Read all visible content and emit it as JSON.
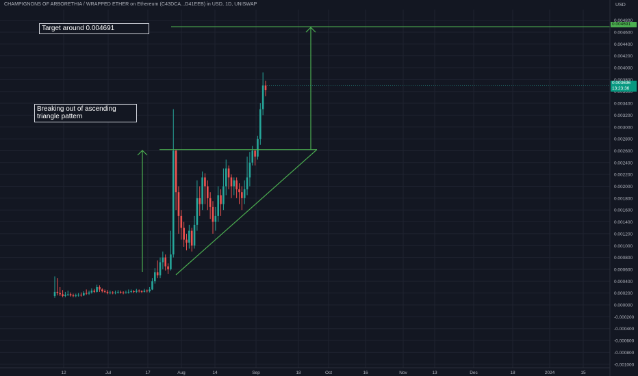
{
  "header": {
    "title": "CHAMPIGNONS OF ARBORETHIA / WRAPPED ETHER on Ethereum (C43DCA...D41EEB) in USD, 1D, UNISWAP",
    "currency": "USD"
  },
  "annotations": {
    "target": "Target around 0.004691",
    "pattern": "Breaking out of ascending\ntriangle pattern"
  },
  "price_tags": {
    "target": "0.004691",
    "last_price": "0.003696",
    "countdown": "13:23:36"
  },
  "colors": {
    "background": "#131722",
    "grid": "#1f2330",
    "up": "#26a69a",
    "down": "#ef5350",
    "drawing": "#4caf50",
    "axis_text": "#b2b5be",
    "annotation_border": "#d1d4dc"
  },
  "chart_data": {
    "type": "candlestick",
    "title": "CHAMPIGNONS OF ARBORETHIA / WRAPPED ETHER on Ethereum (C43DCA...D41EEB) in USD, 1D, UNISWAP",
    "ylabel": "USD",
    "ylim": [
      -0.0011,
      0.0049
    ],
    "y_ticks": [
      "0.004800",
      "0.004600",
      "0.004400",
      "0.004200",
      "0.004000",
      "0.003800",
      "0.003600",
      "0.003400",
      "0.003200",
      "0.003000",
      "0.002800",
      "0.002600",
      "0.002400",
      "0.002200",
      "0.002000",
      "0.001800",
      "0.001600",
      "0.001400",
      "0.001200",
      "0.001000",
      "0.000800",
      "0.000600",
      "0.000400",
      "0.000200",
      "0.000000",
      "-0.000200",
      "-0.000400",
      "-0.000600",
      "-0.000800",
      "-0.001000"
    ],
    "x_ticks": [
      "12",
      "Jul",
      "17",
      "Aug",
      "14",
      "Sep",
      "18",
      "Oct",
      "16",
      "Nov",
      "13",
      "Dec",
      "18",
      "2024",
      "15"
    ],
    "candles": [
      [
        "Jun 12",
        0.00015,
        0.00022,
        0.00048,
        0.00012
      ],
      [
        "Jun 13",
        0.00022,
        0.0002,
        0.00045,
        0.00016
      ],
      [
        "Jun 14",
        0.0002,
        0.00018,
        0.0003,
        0.00015
      ],
      [
        "Jun 15",
        0.00018,
        0.00015,
        0.00025,
        0.00013
      ],
      [
        "Jun 16",
        0.00015,
        0.00017,
        0.00022,
        0.00013
      ],
      [
        "Jun 17",
        0.00017,
        0.00018,
        0.00024,
        0.00015
      ],
      [
        "Jun 18",
        0.00018,
        0.00016,
        0.00021,
        0.00014
      ],
      [
        "Jun 19",
        0.00016,
        0.00015,
        0.00019,
        0.00013
      ],
      [
        "Jun 20",
        0.00015,
        0.00016,
        0.00019,
        0.00013
      ],
      [
        "Jun 21",
        0.00016,
        0.00017,
        0.0002,
        0.00014
      ],
      [
        "Jun 22",
        0.00017,
        0.00016,
        0.00021,
        0.00014
      ],
      [
        "Jun 23",
        0.00016,
        0.0002,
        0.00023,
        0.00015
      ],
      [
        "Jun 24",
        0.0002,
        0.00019,
        0.00026,
        0.00017
      ],
      [
        "Jun 25",
        0.00019,
        0.00021,
        0.00024,
        0.00017
      ],
      [
        "Jun 26",
        0.00021,
        0.00024,
        0.00028,
        0.00019
      ],
      [
        "Jun 27",
        0.00024,
        0.00022,
        0.00027,
        0.0002
      ],
      [
        "Jun 28",
        0.00022,
        0.0003,
        0.00034,
        0.00021
      ],
      [
        "Jun 29",
        0.0003,
        0.00026,
        0.00033,
        0.00022
      ],
      [
        "Jun 30",
        0.00026,
        0.00023,
        0.00028,
        0.00021
      ],
      [
        "Jul 1",
        0.00023,
        0.00022,
        0.00026,
        0.0002
      ],
      [
        "Jul 2",
        0.00022,
        0.0002,
        0.00025,
        0.00018
      ],
      [
        "Jul 3",
        0.0002,
        0.00021,
        0.00024,
        0.00018
      ],
      [
        "Jul 4",
        0.00021,
        0.0002,
        0.00023,
        0.00018
      ],
      [
        "Jul 5",
        0.0002,
        0.00021,
        0.00024,
        0.00018
      ],
      [
        "Jul 6",
        0.00021,
        0.00022,
        0.00025,
        0.00019
      ],
      [
        "Jul 7",
        0.00022,
        0.00021,
        0.00024,
        0.00019
      ],
      [
        "Jul 8",
        0.00021,
        0.0002,
        0.00023,
        0.00018
      ],
      [
        "Jul 9",
        0.0002,
        0.00021,
        0.00024,
        0.00019
      ],
      [
        "Jul 10",
        0.00021,
        0.00022,
        0.00026,
        0.00019
      ],
      [
        "Jul 11",
        0.00022,
        0.00023,
        0.00026,
        0.0002
      ],
      [
        "Jul 12",
        0.00023,
        0.00022,
        0.00025,
        0.0002
      ],
      [
        "Jul 13",
        0.00022,
        0.00024,
        0.00027,
        0.0002
      ],
      [
        "Jul 14",
        0.00024,
        0.00023,
        0.00026,
        0.00021
      ],
      [
        "Jul 15",
        0.00023,
        0.00022,
        0.00025,
        0.0002
      ],
      [
        "Jul 16",
        0.00022,
        0.00024,
        0.00027,
        0.00021
      ],
      [
        "Jul 17",
        0.00024,
        0.00023,
        0.00026,
        0.00021
      ],
      [
        "Jul 18",
        0.00023,
        0.00026,
        0.0003,
        0.00021
      ],
      [
        "Jul 19",
        0.00026,
        0.0004,
        0.00045,
        0.00025
      ],
      [
        "Jul 20",
        0.0004,
        0.00055,
        0.00062,
        0.00036
      ],
      [
        "Jul 21",
        0.00055,
        0.0005,
        0.00075,
        0.00045
      ],
      [
        "Jul 22",
        0.0005,
        0.00072,
        0.0008,
        0.00045
      ],
      [
        "Jul 23",
        0.00072,
        0.0008,
        0.0009,
        0.0006
      ],
      [
        "Jul 24",
        0.0008,
        0.00065,
        0.00085,
        0.00058
      ],
      [
        "Jul 25",
        0.00065,
        0.0006,
        0.0007,
        0.00052
      ],
      [
        "Jul 26",
        0.0006,
        0.00085,
        0.00125,
        0.00058
      ],
      [
        "Jul 27",
        0.00085,
        0.0026,
        0.0033,
        0.0008
      ],
      [
        "Jul 28",
        0.0026,
        0.0019,
        0.00262,
        0.0016
      ],
      [
        "Jul 29",
        0.0019,
        0.0015,
        0.002,
        0.0012
      ],
      [
        "Jul 30",
        0.0015,
        0.0013,
        0.0016,
        0.0011
      ],
      [
        "Jul 31",
        0.0013,
        0.0011,
        0.0014,
        0.00098
      ],
      [
        "Aug 1",
        0.0011,
        0.00105,
        0.0012,
        0.00092
      ],
      [
        "Aug 2",
        0.00105,
        0.00125,
        0.00135,
        0.00095
      ],
      [
        "Aug 3",
        0.00125,
        0.001,
        0.0013,
        0.0009
      ],
      [
        "Aug 4",
        0.001,
        0.00135,
        0.0015,
        0.00095
      ],
      [
        "Aug 5",
        0.00135,
        0.0018,
        0.0021,
        0.00125
      ],
      [
        "Aug 6",
        0.0018,
        0.0017,
        0.002,
        0.0015
      ],
      [
        "Aug 7",
        0.0017,
        0.00215,
        0.00225,
        0.0016
      ],
      [
        "Aug 8",
        0.00215,
        0.002,
        0.00222,
        0.0017
      ],
      [
        "Aug 9",
        0.002,
        0.0018,
        0.0021,
        0.0016
      ],
      [
        "Aug 10",
        0.0018,
        0.00165,
        0.0019,
        0.00145
      ],
      [
        "Aug 11",
        0.00165,
        0.0014,
        0.00175,
        0.0012
      ],
      [
        "Aug 12",
        0.0014,
        0.0015,
        0.00165,
        0.00125
      ],
      [
        "Aug 13",
        0.0015,
        0.00185,
        0.002,
        0.0014
      ],
      [
        "Aug 14",
        0.00185,
        0.0017,
        0.00195,
        0.0015
      ],
      [
        "Aug 15",
        0.0017,
        0.002,
        0.0023,
        0.0016
      ],
      [
        "Aug 16",
        0.002,
        0.0023,
        0.00245,
        0.00185
      ],
      [
        "Aug 17",
        0.0023,
        0.00215,
        0.00235,
        0.00195
      ],
      [
        "Aug 18",
        0.00215,
        0.002,
        0.0022,
        0.0018
      ],
      [
        "Aug 19",
        0.002,
        0.0021,
        0.00215,
        0.00185
      ],
      [
        "Aug 20",
        0.0021,
        0.00195,
        0.00215,
        0.0018
      ],
      [
        "Aug 21",
        0.00195,
        0.0019,
        0.00205,
        0.0017
      ],
      [
        "Aug 22",
        0.0019,
        0.0018,
        0.002,
        0.0016
      ],
      [
        "Aug 23",
        0.0018,
        0.00195,
        0.0021,
        0.0017
      ],
      [
        "Aug 24",
        0.00195,
        0.00215,
        0.0025,
        0.00185
      ],
      [
        "Aug 25",
        0.00215,
        0.0024,
        0.00258,
        0.002
      ],
      [
        "Aug 26",
        0.0024,
        0.0026,
        0.00268,
        0.00235
      ],
      [
        "Aug 27",
        0.0026,
        0.0025,
        0.00262,
        0.00235
      ],
      [
        "Aug 28",
        0.0025,
        0.0028,
        0.00285,
        0.00245
      ],
      [
        "Aug 29",
        0.0028,
        0.0033,
        0.0034,
        0.0027
      ],
      [
        "Aug 30",
        0.0033,
        0.0037,
        0.00392,
        0.0032
      ],
      [
        "Aug 31",
        0.0037,
        0.00362,
        0.00378,
        0.00352
      ]
    ],
    "drawings": {
      "target_level": 0.004691,
      "breakout_level": 0.00262,
      "last_price": 0.003696
    }
  }
}
